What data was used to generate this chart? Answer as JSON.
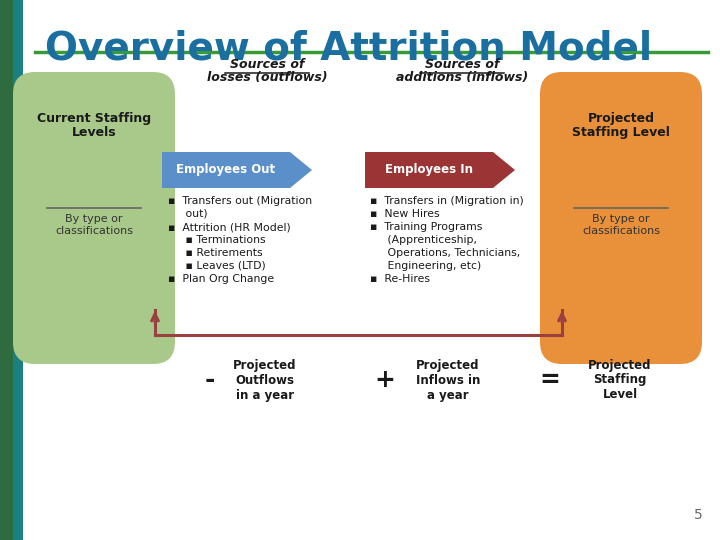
{
  "title": "Overview of Attrition Model",
  "title_color": "#1a6fa0",
  "title_fontsize": 28,
  "bg_color": "#ffffff",
  "green_pill_color": "#a8c98a",
  "orange_pill_color": "#e8903a",
  "blue_arrow_color": "#5b8fc9",
  "red_arrow_color": "#9b3535",
  "sources_losses_line1": "Sources of",
  "sources_losses_line2": "losses (outflows)",
  "sources_additions_line1": "Sources of",
  "sources_additions_line2": "additions (inflows)",
  "current_staffing_line1": "Current Staffing",
  "current_staffing_line2": "Levels",
  "current_staffing_sub": "By type or\nclassifications",
  "projected_staffing_line1": "Projected",
  "projected_staffing_line2": "Staffing Level",
  "projected_staffing_sub": "By type or\nclassifications",
  "employees_out_label": "Employees Out",
  "employees_in_label": "Employees In",
  "bottom_minus": "-",
  "bottom_plus": "+",
  "bottom_equals": "=",
  "bottom_outflows": "Projected\nOutflows\nin a year",
  "bottom_inflows": "Projected\nInflows in\na year",
  "bottom_projected": "Projected\nStaffing\nLevel",
  "page_number": "5",
  "sidebar_dark": "#2e6b3e",
  "sidebar_teal": "#1a8080",
  "title_underline_color": "#3a9a3a",
  "arrow_connector_color": "#9b4040",
  "text_dark": "#1a1a1a",
  "text_mid": "#333333"
}
